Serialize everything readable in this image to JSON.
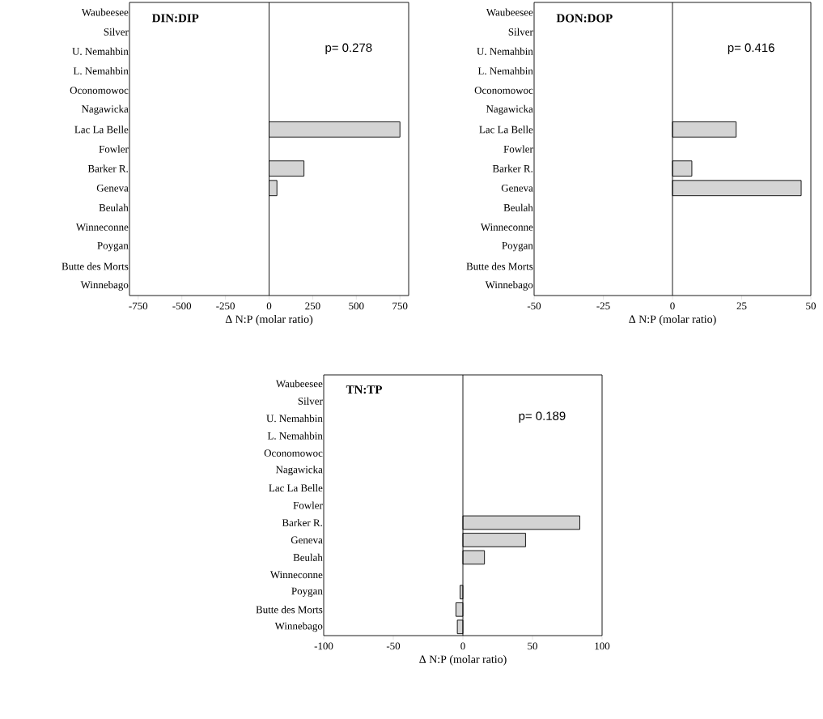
{
  "chart_data": [
    {
      "type": "bar",
      "orientation": "horizontal",
      "title": "DIN:DIP",
      "xlabel": "Δ N:P (molar ratio)",
      "annotations": [
        "p= 0.278"
      ],
      "categories": [
        "Waubeesee",
        "Silver",
        "U. Nemahbin",
        "L. Nemahbin",
        "Oconomowoc",
        "Nagawicka",
        "Lac La Belle",
        "Fowler",
        "Barker R.",
        "Geneva",
        "Beulah",
        "Winneconne",
        "Poygan",
        "Butte des Morts",
        "Winnebago"
      ],
      "values": [
        null,
        null,
        null,
        null,
        null,
        null,
        750,
        null,
        200,
        45,
        null,
        null,
        null,
        null,
        null
      ],
      "color": "#d4d4d4",
      "xlim": [
        -800,
        800
      ],
      "xticks": [
        -750,
        -500,
        -250,
        0,
        250,
        500,
        750
      ],
      "ref_lines": [
        {
          "axis": "x",
          "value": 0
        }
      ]
    },
    {
      "type": "bar",
      "orientation": "horizontal",
      "title": "DON:DOP",
      "xlabel": "Δ N:P (molar ratio)",
      "annotations": [
        "p= 0.416"
      ],
      "categories": [
        "Waubeesee",
        "Silver",
        "U. Nemahbin",
        "L. Nemahbin",
        "Oconomowoc",
        "Nagawicka",
        "Lac La Belle",
        "Fowler",
        "Barker R.",
        "Geneva",
        "Beulah",
        "Winneconne",
        "Poygan",
        "Butte des Morts",
        "Winnebago"
      ],
      "values": [
        null,
        null,
        null,
        null,
        null,
        null,
        23,
        null,
        7,
        46.5,
        null,
        null,
        null,
        null,
        null
      ],
      "color": "#d4d4d4",
      "xlim": [
        -50,
        50
      ],
      "xticks": [
        -50,
        -25,
        0,
        25,
        50
      ],
      "ref_lines": [
        {
          "axis": "x",
          "value": 0
        }
      ]
    },
    {
      "type": "bar",
      "orientation": "horizontal",
      "title": "TN:TP",
      "xlabel": "Δ N:P (molar ratio)",
      "annotations": [
        "p= 0.189"
      ],
      "categories": [
        "Waubeesee",
        "Silver",
        "U. Nemahbin",
        "L. Nemahbin",
        "Oconomowoc",
        "Nagawicka",
        "Lac La Belle",
        "Fowler",
        "Barker R.",
        "Geneva",
        "Beulah",
        "Winneconne",
        "Poygan",
        "Butte des Morts",
        "Winnebago"
      ],
      "values": [
        null,
        null,
        null,
        null,
        null,
        null,
        null,
        null,
        84,
        45,
        15.5,
        null,
        -2,
        -5,
        -4
      ],
      "color": "#d4d4d4",
      "xlim": [
        -100,
        100
      ],
      "xticks": [
        -100,
        -50,
        0,
        50,
        100
      ],
      "ref_lines": [
        {
          "axis": "x",
          "value": 0
        }
      ]
    }
  ]
}
